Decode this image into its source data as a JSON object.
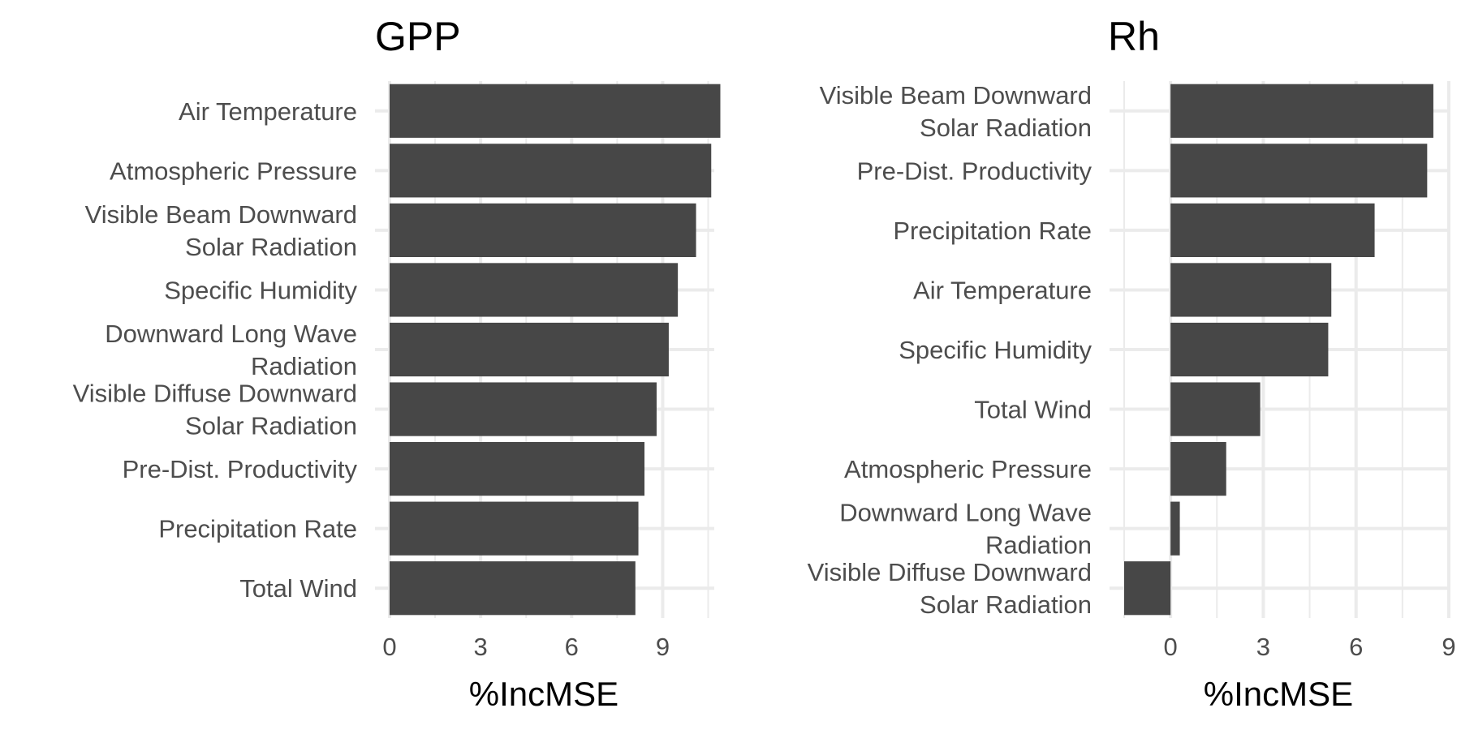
{
  "colors": {
    "bar": "#474747",
    "grid_major": "#ebebeb",
    "grid_minor": "#ebebeb",
    "background": "#ffffff"
  },
  "chart_data": [
    {
      "type": "bar",
      "orientation": "horizontal",
      "title": "GPP",
      "xlabel": "%IncMSE",
      "ylabel": "",
      "xlim": [
        0,
        10.7
      ],
      "xticks": [
        0,
        3,
        6,
        9
      ],
      "grid": true,
      "categories": [
        "Air Temperature",
        "Atmospheric Pressure",
        "Visible Beam Downward Solar Radiation",
        "Specific Humidity",
        "Downward Long Wave Radiation",
        "Visible Diffuse Downward Solar Radiation",
        "Pre-Dist. Productivity",
        "Precipitation Rate",
        "Total Wind"
      ],
      "category_lines": [
        [
          "Air Temperature"
        ],
        [
          "Atmospheric Pressure"
        ],
        [
          "Visible Beam Downward",
          "Solar Radiation"
        ],
        [
          "Specific Humidity"
        ],
        [
          "Downward Long Wave",
          "Radiation"
        ],
        [
          "Visible Diffuse Downward",
          "Solar Radiation"
        ],
        [
          "Pre-Dist. Productivity"
        ],
        [
          "Precipitation Rate"
        ],
        [
          "Total Wind"
        ]
      ],
      "values": [
        10.9,
        10.6,
        10.1,
        9.5,
        9.2,
        8.8,
        8.4,
        8.2,
        8.1
      ]
    },
    {
      "type": "bar",
      "orientation": "horizontal",
      "title": "Rh",
      "xlabel": "%IncMSE",
      "ylabel": "",
      "xlim": [
        -1.5,
        9.0
      ],
      "xticks": [
        0,
        3,
        6,
        9
      ],
      "grid": true,
      "categories": [
        "Visible Beam Downward Solar Radiation",
        "Pre-Dist. Productivity",
        "Precipitation Rate",
        "Air Temperature",
        "Specific Humidity",
        "Total Wind",
        "Atmospheric Pressure",
        "Downward Long Wave Radiation",
        "Visible Diffuse Downward Solar Radiation"
      ],
      "category_lines": [
        [
          "Visible Beam Downward",
          "Solar Radiation"
        ],
        [
          "Pre-Dist. Productivity"
        ],
        [
          "Precipitation Rate"
        ],
        [
          "Air Temperature"
        ],
        [
          "Specific Humidity"
        ],
        [
          "Total Wind"
        ],
        [
          "Atmospheric Pressure"
        ],
        [
          "Downward Long Wave",
          "Radiation"
        ],
        [
          "Visible Diffuse Downward",
          "Solar Radiation"
        ]
      ],
      "values": [
        8.5,
        8.3,
        6.6,
        5.2,
        5.1,
        2.9,
        1.8,
        0.3,
        -1.5
      ]
    }
  ]
}
